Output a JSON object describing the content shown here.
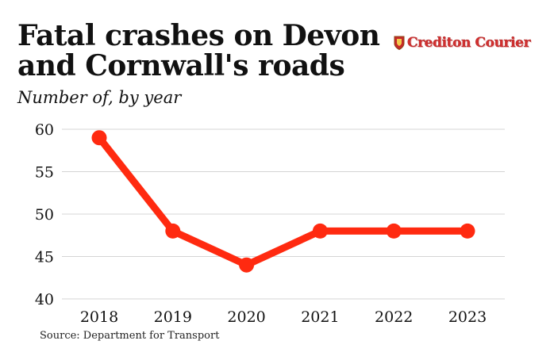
{
  "header": {
    "title": "Fatal crashes on Devon and Cornwall's roads",
    "subtitle": "Number of, by year"
  },
  "logo": {
    "text": "Crediton Courier",
    "color": "#d32f2f"
  },
  "footer": {
    "source": "Source: Department for Transport"
  },
  "chart_data": {
    "type": "line",
    "categories": [
      "2018",
      "2019",
      "2020",
      "2021",
      "2022",
      "2023"
    ],
    "values": [
      59,
      48,
      44,
      48,
      48,
      48
    ],
    "ylim": [
      40,
      60
    ],
    "yticks": [
      40,
      45,
      50,
      55,
      60
    ],
    "grid": true,
    "line_color": "#ff2a10",
    "grid_color": "#d4d4d4"
  }
}
